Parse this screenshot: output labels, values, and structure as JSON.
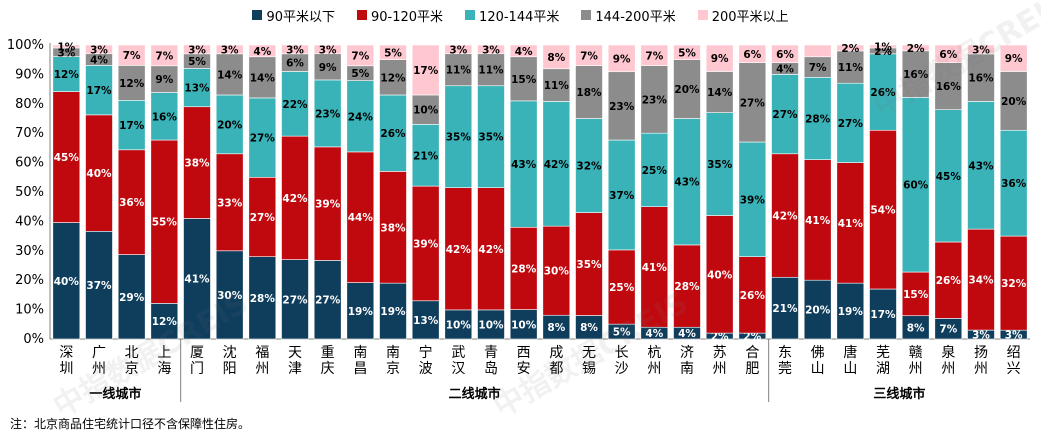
{
  "legend": [
    {
      "name": "90平米以下",
      "color": "#0f3d5c"
    },
    {
      "name": "90-120平米",
      "color": "#c0090f"
    },
    {
      "name": "120-144平米",
      "color": "#3ab3b8"
    },
    {
      "name": "144-200平米",
      "color": "#8c8c8c"
    },
    {
      "name": "200平米以上",
      "color": "#ffc8d1"
    }
  ],
  "watermark": "中指数据CREIS",
  "note": "注：北京商品住宅统计口径不含保障性住房。",
  "chart_data": {
    "type": "bar",
    "stacked": true,
    "normalized": true,
    "ylim": [
      0,
      100
    ],
    "y_ticks": [
      "0%",
      "10%",
      "20%",
      "30%",
      "40%",
      "50%",
      "60%",
      "70%",
      "80%",
      "90%",
      "100%"
    ],
    "categories": [
      "深圳",
      "广州",
      "北京",
      "上海",
      "厦门",
      "沈阳",
      "福州",
      "天津",
      "重庆",
      "南昌",
      "南京",
      "宁波",
      "武汉",
      "青岛",
      "西安",
      "成都",
      "无锡",
      "长沙",
      "杭州",
      "济南",
      "苏州",
      "合肥",
      "东莞",
      "佛山",
      "唐山",
      "芜湖",
      "赣州",
      "泉州",
      "扬州",
      "绍兴"
    ],
    "groups": [
      {
        "label": "一线城市",
        "start": 0,
        "end": 3
      },
      {
        "label": "二线城市",
        "start": 4,
        "end": 21
      },
      {
        "label": "三线城市",
        "start": 22,
        "end": 29
      }
    ],
    "series": [
      {
        "name": "90平米以下",
        "values": [
          40,
          37,
          29,
          12,
          41,
          30,
          28,
          27,
          27,
          19,
          19,
          13,
          10,
          10,
          10,
          8,
          8,
          5,
          4,
          4,
          2,
          2,
          21,
          20,
          19,
          17,
          8,
          7,
          3,
          3
        ]
      },
      {
        "name": "90-120平米",
        "values": [
          45,
          40,
          36,
          55,
          38,
          33,
          27,
          42,
          39,
          44,
          38,
          39,
          42,
          42,
          28,
          30,
          35,
          25,
          41,
          28,
          40,
          26,
          42,
          41,
          41,
          54,
          15,
          26,
          34,
          32
        ]
      },
      {
        "name": "120-144平米",
        "values": [
          12,
          17,
          17,
          16,
          13,
          20,
          27,
          22,
          23,
          24,
          26,
          21,
          35,
          35,
          43,
          42,
          32,
          37,
          25,
          43,
          35,
          39,
          27,
          28,
          27,
          26,
          60,
          45,
          43,
          36
        ]
      },
      {
        "name": "144-200平米",
        "values": [
          3,
          4,
          12,
          9,
          5,
          14,
          14,
          6,
          9,
          5,
          12,
          10,
          11,
          11,
          15,
          11,
          18,
          23,
          23,
          20,
          14,
          27,
          4,
          7,
          11,
          2,
          16,
          16,
          16,
          20
        ]
      },
      {
        "name": "200平米以上",
        "values": [
          1,
          3,
          7,
          7,
          3,
          3,
          4,
          3,
          3,
          7,
          5,
          17,
          3,
          3,
          4,
          8,
          7,
          9,
          7,
          5,
          9,
          6,
          6,
          4,
          2,
          1,
          2,
          6,
          3,
          9
        ]
      }
    ],
    "labels": [
      [
        "40%",
        "45%",
        "12%",
        "3%",
        "1%"
      ],
      [
        "37%",
        "40%",
        "17%",
        "4%",
        "3%"
      ],
      [
        "29%",
        "36%",
        "17%",
        "12%",
        "7%"
      ],
      [
        "12%",
        "55%",
        "16%",
        "9%",
        "7%"
      ],
      [
        "41%",
        "38%",
        "13%",
        "5%",
        "3%"
      ],
      [
        "30%",
        "33%",
        "20%",
        "14%",
        "3%"
      ],
      [
        "28%",
        "27%",
        "27%",
        "14%",
        "4%"
      ],
      [
        "27%",
        "42%",
        "22%",
        "6%",
        "3%"
      ],
      [
        "27%",
        "39%",
        "23%",
        "9%",
        "3%"
      ],
      [
        "19%",
        "44%",
        "24%",
        "5%",
        "7%"
      ],
      [
        "19%",
        "38%",
        "26%",
        "12%",
        "5%"
      ],
      [
        "13%",
        "39%",
        "21%",
        "10%",
        "17%"
      ],
      [
        "10%",
        "42%",
        "35%",
        "11%",
        "3%"
      ],
      [
        "10%",
        "42%",
        "35%",
        "11%",
        "3%"
      ],
      [
        "10%",
        "28%",
        "43%",
        "15%",
        "4%"
      ],
      [
        "8%",
        "30%",
        "42%",
        "11%",
        "8%"
      ],
      [
        "8%",
        "35%",
        "32%",
        "18%",
        "7%"
      ],
      [
        "5%",
        "25%",
        "37%",
        "23%",
        "9%"
      ],
      [
        "4%",
        "41%",
        "25%",
        "23%",
        "7%"
      ],
      [
        "4%",
        "28%",
        "43%",
        "20%",
        "5%"
      ],
      [
        "2%",
        "40%",
        "35%",
        "14%",
        "9%"
      ],
      [
        "2%",
        "26%",
        "39%",
        "27%",
        "6%"
      ],
      [
        "21%",
        "42%",
        "27%",
        "4%",
        "6%"
      ],
      [
        "20%",
        "41%",
        "28%",
        "7%",
        ""
      ],
      [
        "19%",
        "41%",
        "27%",
        "11%",
        "2%"
      ],
      [
        "17%",
        "54%",
        "26%",
        "2%",
        "1%"
      ],
      [
        "8%",
        "15%",
        "60%",
        "16%",
        "2%"
      ],
      [
        "7%",
        "26%",
        "45%",
        "16%",
        "6%"
      ],
      [
        "3%",
        "34%",
        "43%",
        "16%",
        "3%"
      ],
      [
        "3%",
        "32%",
        "36%",
        "20%",
        "9%"
      ]
    ],
    "grid": false,
    "legend_position": "top"
  }
}
